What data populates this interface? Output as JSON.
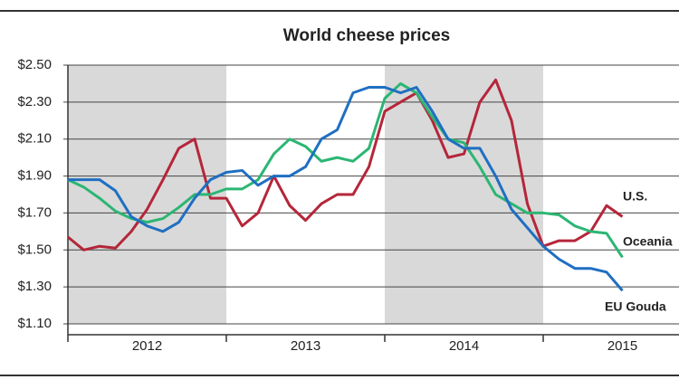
{
  "chart_data": {
    "type": "line",
    "title": "World cheese prices",
    "x": [
      2012.0,
      2012.1,
      2012.2,
      2012.3,
      2012.4,
      2012.5,
      2012.6,
      2012.7,
      2012.8,
      2012.9,
      2013.0,
      2013.1,
      2013.2,
      2013.3,
      2013.4,
      2013.5,
      2013.6,
      2013.7,
      2013.8,
      2013.9,
      2014.0,
      2014.1,
      2014.2,
      2014.3,
      2014.4,
      2014.5,
      2014.6,
      2014.7,
      2014.8,
      2014.9,
      2015.0,
      2015.1,
      2015.2,
      2015.3,
      2015.4,
      2015.5
    ],
    "series": [
      {
        "name": "U.S.",
        "color": "#b5263a",
        "values": [
          1.57,
          1.5,
          1.52,
          1.51,
          1.6,
          1.72,
          1.88,
          2.05,
          2.1,
          1.78,
          1.78,
          1.63,
          1.7,
          1.9,
          1.74,
          1.66,
          1.75,
          1.8,
          1.8,
          1.95,
          2.25,
          2.3,
          2.35,
          2.2,
          2.0,
          2.02,
          2.3,
          2.42,
          2.2,
          1.75,
          1.52,
          1.55,
          1.55,
          1.6,
          1.74,
          1.68
        ]
      },
      {
        "name": "Oceania",
        "color": "#2bb673",
        "values": [
          1.88,
          1.84,
          1.78,
          1.71,
          1.67,
          1.65,
          1.67,
          1.73,
          1.8,
          1.8,
          1.83,
          1.83,
          1.88,
          2.02,
          2.1,
          2.06,
          1.98,
          2.0,
          1.98,
          2.05,
          2.32,
          2.4,
          2.35,
          2.22,
          2.1,
          2.08,
          1.95,
          1.8,
          1.75,
          1.7,
          1.7,
          1.69,
          1.63,
          1.6,
          1.59,
          1.46
        ]
      },
      {
        "name": "EU Gouda",
        "color": "#1f6fc1",
        "values": [
          1.88,
          1.88,
          1.88,
          1.82,
          1.68,
          1.63,
          1.6,
          1.65,
          1.78,
          1.88,
          1.92,
          1.93,
          1.85,
          1.9,
          1.9,
          1.95,
          2.1,
          2.15,
          2.35,
          2.38,
          2.38,
          2.35,
          2.38,
          2.25,
          2.1,
          2.05,
          2.05,
          1.9,
          1.72,
          1.62,
          1.52,
          1.45,
          1.4,
          1.4,
          1.38,
          1.28
        ]
      }
    ],
    "xlim": [
      2012,
      2015.8
    ],
    "xticks": [
      {
        "value": 2012.5,
        "label": "2012"
      },
      {
        "value": 2013.5,
        "label": "2013"
      },
      {
        "value": 2014.5,
        "label": "2014"
      },
      {
        "value": 2015.5,
        "label": "2015"
      }
    ],
    "shaded_x": [
      [
        2012,
        2013
      ],
      [
        2014,
        2015
      ]
    ],
    "ylim": [
      1.1,
      2.5
    ],
    "yticks": [
      {
        "value": 2.5,
        "label": "$2.50"
      },
      {
        "value": 2.3,
        "label": "$2.30"
      },
      {
        "value": 2.1,
        "label": "$2.10"
      },
      {
        "value": 1.9,
        "label": "$1.90"
      },
      {
        "value": 1.7,
        "label": "$1.70"
      },
      {
        "value": 1.5,
        "label": "$1.50"
      },
      {
        "value": 1.3,
        "label": "$1.30"
      },
      {
        "value": 1.1,
        "label": "$1.10"
      }
    ],
    "grid": true
  }
}
